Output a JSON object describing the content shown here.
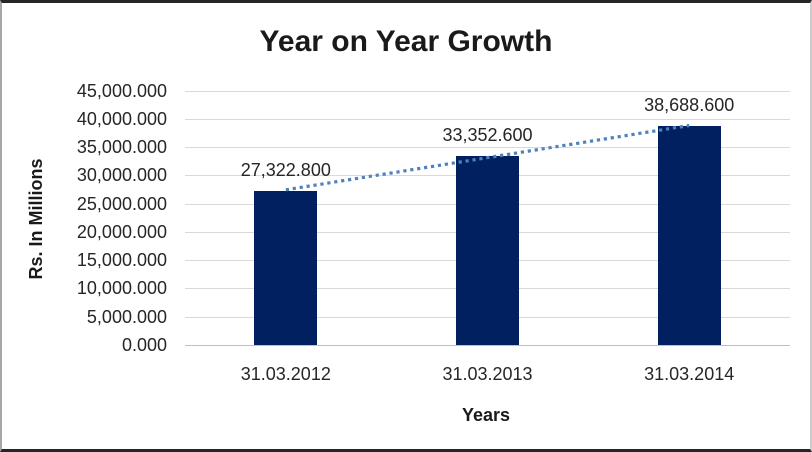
{
  "chart_data": {
    "type": "bar",
    "title": "Year on Year Growth",
    "xlabel": "Years",
    "ylabel": "Rs. In Millions",
    "categories": [
      "31.03.2012",
      "31.03.2013",
      "31.03.2014"
    ],
    "values": [
      27322.8,
      33352.6,
      38688.6
    ],
    "data_labels": [
      "27,322.800",
      "33,352.600",
      "38,688.600"
    ],
    "ylim": [
      0,
      45000
    ],
    "ytick_step": 5000,
    "ytick_labels": [
      "45,000.000",
      "40,000.000",
      "35,000.000",
      "30,000.000",
      "25,000.000",
      "20,000.000",
      "15,000.000",
      "10,000.000",
      "5,000.000",
      "0.000"
    ],
    "grid": true,
    "legend": "none",
    "trendline": {
      "type": "linear",
      "style": "dotted"
    }
  },
  "colors": {
    "bar": "#002060",
    "trendline": "#4F81BD",
    "gridline": "#D9D9D9",
    "axis_line": "#BFBFBF",
    "text": "#262626",
    "title": "#1A1A1A",
    "background": "#FFFFFF"
  }
}
